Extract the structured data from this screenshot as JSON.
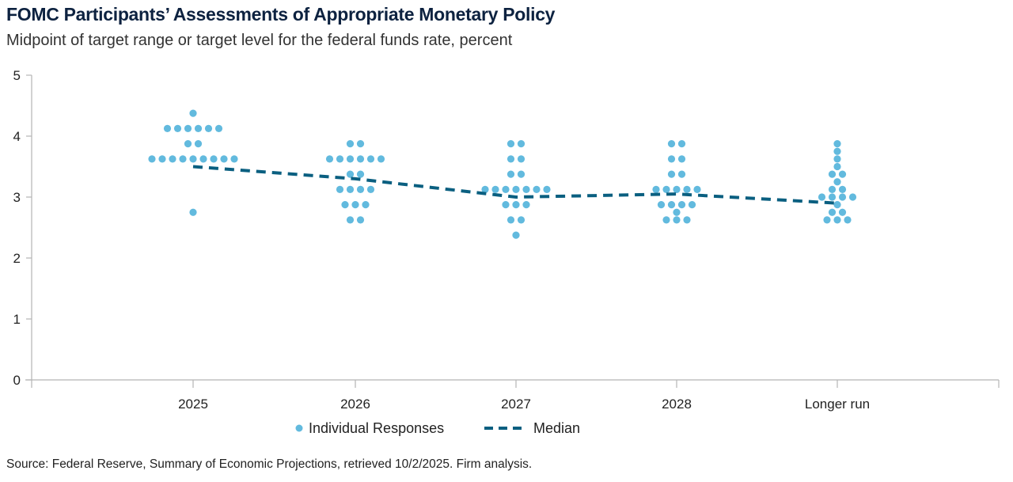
{
  "chart_data": {
    "type": "scatter",
    "title": "FOMC Participants’ Assessments of Appropriate Monetary Policy",
    "subtitle": "Midpoint of target range or target level for the federal funds rate, percent",
    "source": "Source: Federal Reserve, Summary of Economic Projections, retrieved 10/2/2025. Firm analysis.",
    "categories": [
      "2025",
      "2026",
      "2027",
      "2028",
      "Longer run"
    ],
    "ylim": [
      0,
      5
    ],
    "yticks": [
      "0",
      "1",
      "2",
      "3",
      "4",
      "5"
    ],
    "grid": false,
    "legend_position": "bottom",
    "series": [
      {
        "name": "Individual Responses",
        "type": "dots",
        "color": "#62bade",
        "values": [
          [
            [
              4.375,
              1
            ],
            [
              4.125,
              6
            ],
            [
              3.875,
              2
            ],
            [
              3.625,
              9
            ],
            [
              2.75,
              1
            ]
          ],
          [
            [
              3.875,
              2
            ],
            [
              3.625,
              6
            ],
            [
              3.375,
              2
            ],
            [
              3.125,
              4
            ],
            [
              2.875,
              3
            ],
            [
              2.625,
              2
            ]
          ],
          [
            [
              3.875,
              2
            ],
            [
              3.625,
              2
            ],
            [
              3.375,
              2
            ],
            [
              3.125,
              7
            ],
            [
              2.875,
              3
            ],
            [
              2.625,
              2
            ],
            [
              2.375,
              1
            ]
          ],
          [
            [
              3.875,
              2
            ],
            [
              3.625,
              2
            ],
            [
              3.375,
              2
            ],
            [
              3.125,
              5
            ],
            [
              2.875,
              4
            ],
            [
              2.75,
              1
            ],
            [
              2.625,
              3
            ]
          ],
          [
            [
              3.875,
              1
            ],
            [
              3.75,
              1
            ],
            [
              3.625,
              1
            ],
            [
              3.5,
              1
            ],
            [
              3.375,
              2
            ],
            [
              3.25,
              1
            ],
            [
              3.125,
              2
            ],
            [
              3.0,
              4
            ],
            [
              2.875,
              1
            ],
            [
              2.75,
              2
            ],
            [
              2.625,
              3
            ]
          ]
        ]
      },
      {
        "name": "Median",
        "type": "dashed-line",
        "color": "#0a5f80",
        "values": [
          3.5,
          3.3,
          3.0,
          3.05,
          2.9
        ]
      }
    ]
  }
}
